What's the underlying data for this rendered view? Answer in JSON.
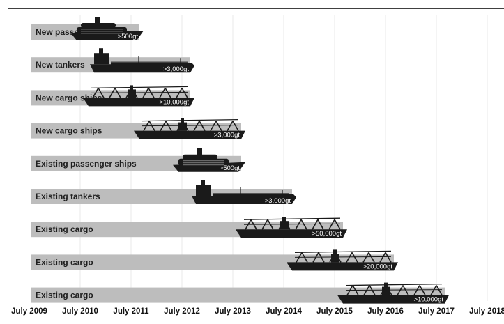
{
  "chart_data": {
    "type": "bar",
    "title": "",
    "xlabel": "",
    "ylabel": "",
    "x_axis": {
      "ticks": [
        "July 2009",
        "July 2010",
        "July 2011",
        "July 2012",
        "July 2013",
        "July 2014",
        "July 2015",
        "July 2016",
        "July 2017",
        "July 2018"
      ],
      "range": [
        "July 2009",
        "July 2018"
      ]
    },
    "grid": "vertical",
    "legend": "none",
    "colors": {
      "bar": "#bdbdbd",
      "ship": "#1a1a1a",
      "grid": "#e8e8e8"
    },
    "bars": [
      {
        "label": "New passenger ships",
        "ship_type": "passenger",
        "threshold": ">500gt",
        "start": "July 2009",
        "end": "July 2011"
      },
      {
        "label": "New tankers",
        "ship_type": "tanker",
        "threshold": ">3,000gt",
        "start": "July 2009",
        "end": "July 2012"
      },
      {
        "label": "New cargo ships",
        "ship_type": "cargo",
        "threshold": ">10,000gt",
        "start": "July 2009",
        "end": "July 2012"
      },
      {
        "label": "New cargo ships",
        "ship_type": "cargo",
        "threshold": ">3,000gt",
        "start": "July 2009",
        "end": "July 2013"
      },
      {
        "label": "Existing passenger ships",
        "ship_type": "passenger",
        "threshold": ">500gt",
        "start": "July 2009",
        "end": "July 2013"
      },
      {
        "label": "Existing tankers",
        "ship_type": "tanker",
        "threshold": ">3,000gt",
        "start": "July 2009",
        "end": "July 2014"
      },
      {
        "label": "Existing cargo",
        "ship_type": "cargo",
        "threshold": ">50,000gt",
        "start": "July 2009",
        "end": "July 2015"
      },
      {
        "label": "Existing cargo",
        "ship_type": "cargo",
        "threshold": ">20,000gt",
        "start": "July 2009",
        "end": "July 2016"
      },
      {
        "label": "Existing cargo",
        "ship_type": "cargo",
        "threshold": ">10,000gt",
        "start": "July 2009",
        "end": "July 2017"
      }
    ]
  }
}
